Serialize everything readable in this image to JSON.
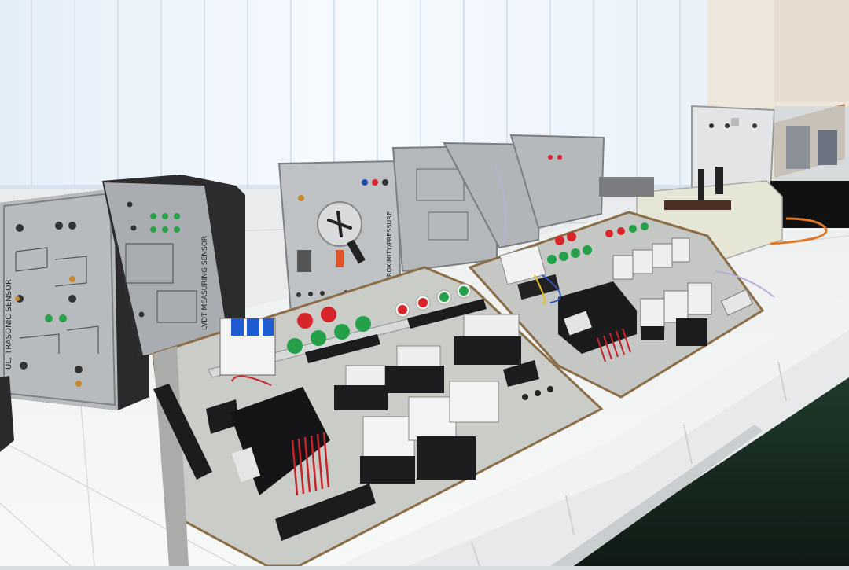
{
  "scene": {
    "description_label": "Electrical control training lab bench",
    "panel_labels": {
      "ultrasonic": "UL. TRASONIC SENSOR",
      "lvdt": "LVDT MEASURING SENSOR",
      "hall": "HALL/PROXIMITY/PRESSURE"
    }
  },
  "colors": {
    "curtain": "#eef4fb",
    "tile": "#f3f4f4",
    "panel_grey": "#c9ccc7",
    "module_silver": "#b9bcbf",
    "button_red": "#d8252b",
    "button_green": "#24a04a",
    "wire_red": "#c6222a",
    "floor_dark": "#16261e"
  }
}
